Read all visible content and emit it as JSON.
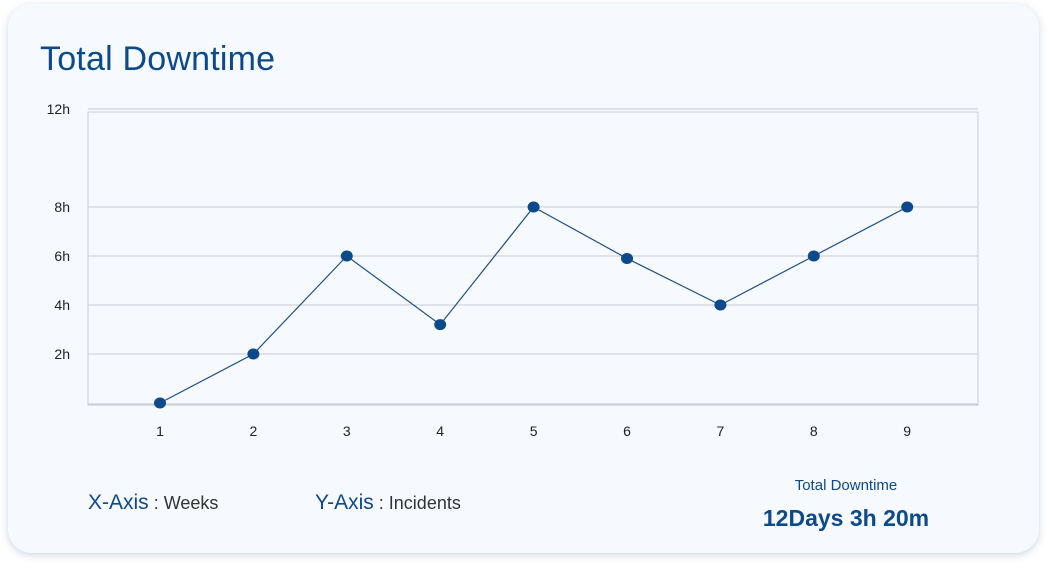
{
  "header": {
    "title": "Total Downtime"
  },
  "legend": {
    "x_key": "X-Axis",
    "x_value": "Weeks",
    "y_key": "Y-Axis",
    "y_value": "Incidents",
    "separator": ":"
  },
  "summary": {
    "caption": "Total Downtime",
    "value": "12Days 3h 20m"
  },
  "colors": {
    "accent": "#0d4a8b",
    "line": "#1c4f86",
    "grid": "#c8ccd2",
    "card": "#f6f9fe"
  },
  "chart_data": {
    "type": "line",
    "title": "Total Downtime",
    "xlabel": "Weeks",
    "ylabel": "Incidents",
    "x": [
      1,
      2,
      3,
      4,
      5,
      6,
      7,
      8,
      9
    ],
    "series": [
      {
        "values": [
          0,
          2,
          6,
          3.2,
          8,
          5.9,
          4,
          6,
          8
        ]
      }
    ],
    "y_ticks": [
      {
        "value": 2,
        "label": "2h"
      },
      {
        "value": 4,
        "label": "4h"
      },
      {
        "value": 6,
        "label": "6h"
      },
      {
        "value": 8,
        "label": "8h"
      },
      {
        "value": 12,
        "label": "12h"
      }
    ],
    "grid": true
  }
}
